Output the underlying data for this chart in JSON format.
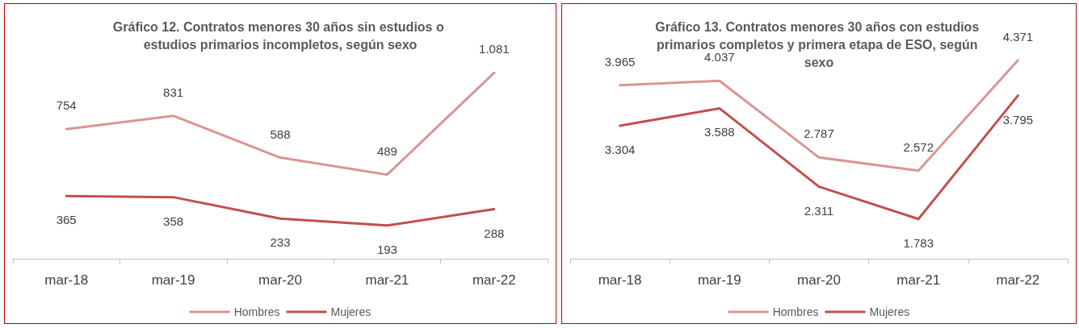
{
  "chart_data": [
    {
      "type": "line",
      "title": "Gráfico 12. Contratos menores 30 años sin estudios o estudios primarios incompletos, según sexo",
      "categories": [
        "mar-18",
        "mar-19",
        "mar-20",
        "mar-21",
        "mar-22"
      ],
      "series": [
        {
          "name": "Hombres",
          "color": "#d99694",
          "values": [
            754,
            831,
            588,
            489,
            1081
          ],
          "value_labels": [
            "754",
            "831",
            "588",
            "489",
            "1.081"
          ]
        },
        {
          "name": "Mujeres",
          "color": "#c0504d",
          "values": [
            365,
            358,
            233,
            193,
            288
          ],
          "value_labels": [
            "365",
            "358",
            "233",
            "193",
            "288"
          ]
        }
      ],
      "marker": "none",
      "legend": "bottom",
      "grid": false
    },
    {
      "type": "line",
      "title": "Gráfico 13. Contratos menores 30 años con estudios primarios completos y primera etapa de ESO, según sexo",
      "categories": [
        "mar-18",
        "mar-19",
        "mar-20",
        "mar-21",
        "mar-22"
      ],
      "series": [
        {
          "name": "Hombres",
          "color": "#d99694",
          "values": [
            3965,
            4037,
            2787,
            2572,
            4371
          ],
          "value_labels": [
            "3.965",
            "4.037",
            "2.787",
            "2.572",
            "4.371"
          ]
        },
        {
          "name": "Mujeres",
          "color": "#c0504d",
          "values": [
            3304,
            3588,
            2311,
            1783,
            3795
          ],
          "value_labels": [
            "3.304",
            "3.588",
            "2.311",
            "1.783",
            "3.795"
          ]
        }
      ],
      "marker": "none",
      "legend": "bottom",
      "grid": false
    }
  ]
}
